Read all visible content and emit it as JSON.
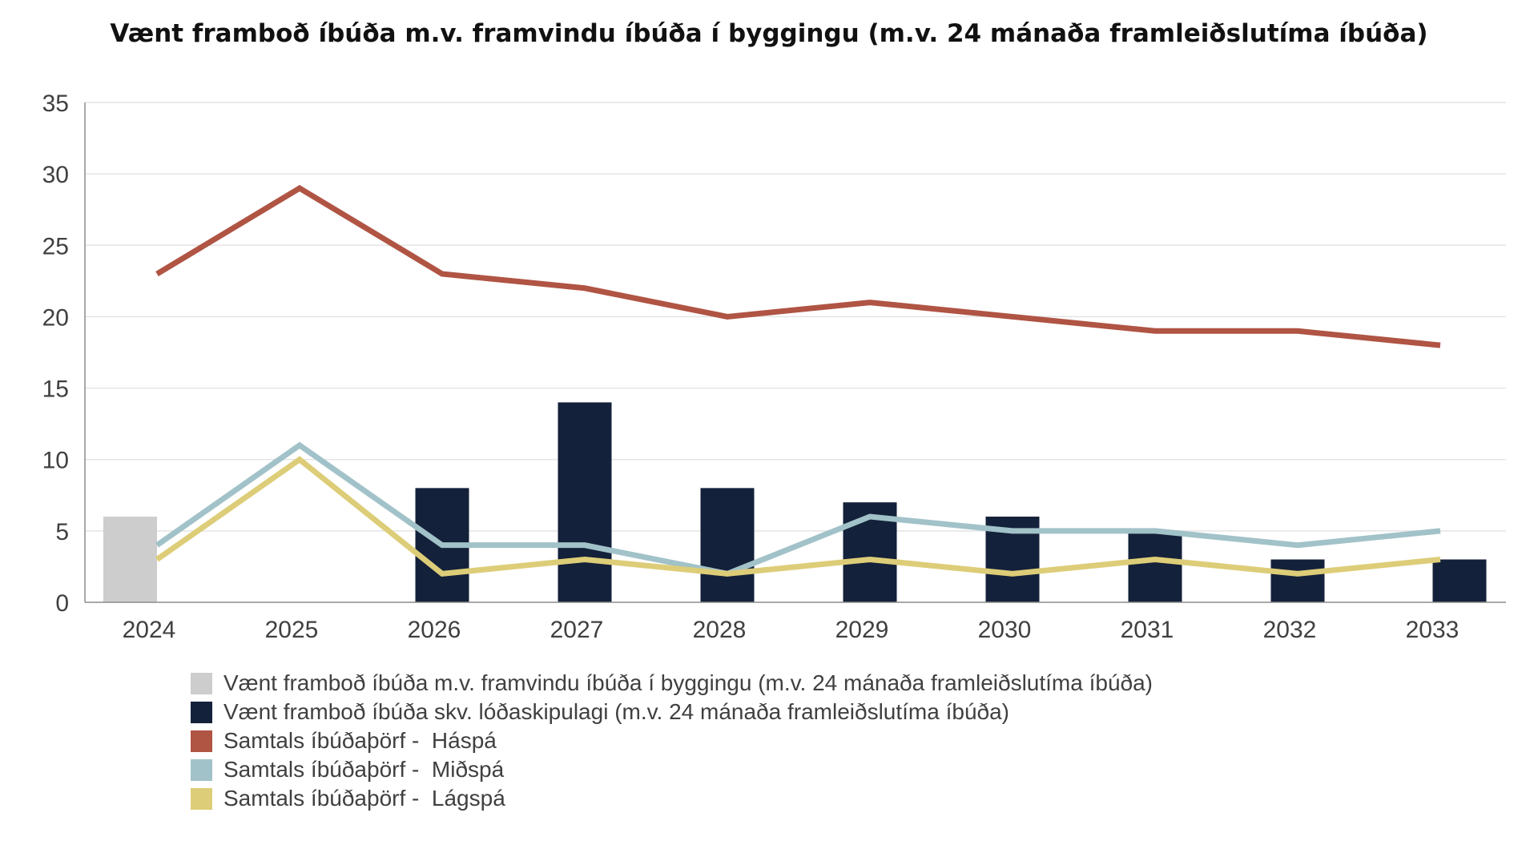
{
  "chart_data": {
    "type": "bar",
    "title": "Vænt framboð íbúða m.v. framvindu íbúða í byggingu (m.v. 24 mánaða framleiðslutíma íbúða)",
    "xlabel": "",
    "ylabel": "",
    "ylim": [
      0,
      35
    ],
    "yticks": [
      0,
      5,
      10,
      15,
      20,
      25,
      30,
      35
    ],
    "grid": true,
    "legend_position": "bottom",
    "categories": [
      "2024",
      "2025",
      "2026",
      "2027",
      "2028",
      "2029",
      "2030",
      "2031",
      "2032",
      "2033"
    ],
    "series": [
      {
        "name": "Vænt framboð íbúða m.v. framvindu íbúða í byggingu (m.v. 24 mánaða framleiðslutíma íbúða)",
        "type": "bar",
        "color": "#cdcdcd",
        "values": [
          6,
          null,
          null,
          null,
          null,
          null,
          null,
          null,
          null,
          null
        ]
      },
      {
        "name": "Vænt framboð íbúða skv. lóðaskipulagi (m.v. 24 mánaða framleiðslutíma íbúða)",
        "type": "bar",
        "color": "#14213a",
        "values": [
          null,
          null,
          8,
          14,
          8,
          7,
          6,
          5,
          3,
          3
        ]
      },
      {
        "name": "Samtals íbúðaþörf -  Háspá",
        "type": "line",
        "color": "#b05444",
        "values": [
          23,
          29,
          23,
          22,
          20,
          21,
          20,
          19,
          19,
          18
        ]
      },
      {
        "name": "Samtals íbúðaþörf -  Miðspá",
        "type": "line",
        "color": "#a1c2c8",
        "values": [
          4,
          11,
          4,
          4,
          2,
          6,
          5,
          5,
          4,
          5
        ]
      },
      {
        "name": "Samtals íbúðaþörf -  Lágspá",
        "type": "line",
        "color": "#ddcd78",
        "values": [
          3,
          10,
          2,
          3,
          2,
          3,
          2,
          3,
          2,
          3
        ]
      }
    ]
  }
}
